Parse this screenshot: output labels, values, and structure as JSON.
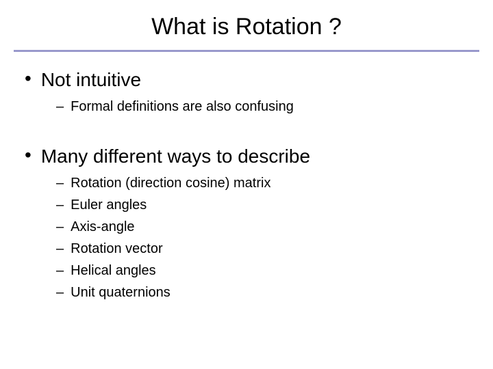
{
  "title": "What is Rotation ?",
  "colors": {
    "divider": "#9999cc",
    "background": "#ffffff",
    "text": "#000000"
  },
  "typography": {
    "title_fontsize": 34,
    "l1_fontsize": 28,
    "l2_fontsize": 20,
    "font_family": "Arial"
  },
  "bullets": [
    {
      "text": "Not intuitive",
      "children": [
        "Formal definitions are also confusing"
      ]
    },
    {
      "text": "Many different ways to describe",
      "children": [
        "Rotation (direction cosine) matrix",
        "Euler angles",
        "Axis-angle",
        "Rotation vector",
        "Helical angles",
        "Unit quaternions"
      ]
    }
  ]
}
